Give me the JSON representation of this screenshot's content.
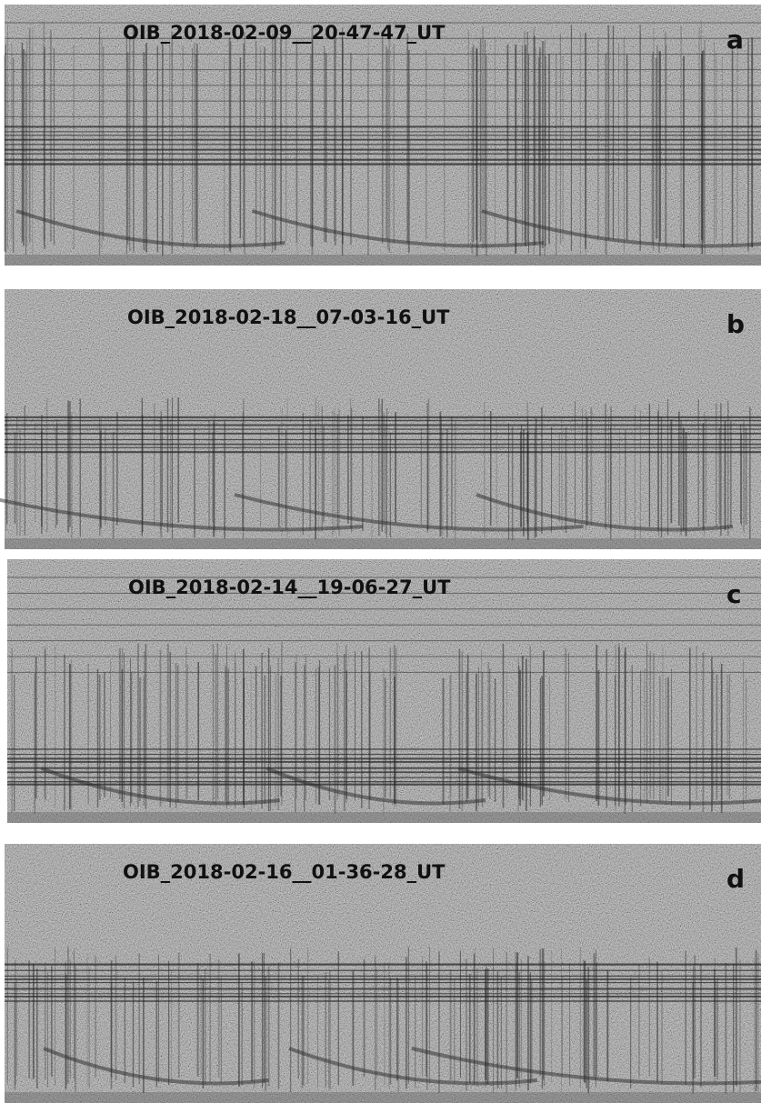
{
  "panels": [
    {
      "title": "OIB_2018-02-09__20-47-47_UT",
      "label": "a"
    },
    {
      "title": "OIB_2018-02-18__07-03-16_UT",
      "label": "b"
    },
    {
      "title": "OIB_2018-02-14__19-06-27_UT",
      "label": "c"
    },
    {
      "title": "OIB_2018-02-16__01-36-28_UT",
      "label": "d"
    }
  ]
}
